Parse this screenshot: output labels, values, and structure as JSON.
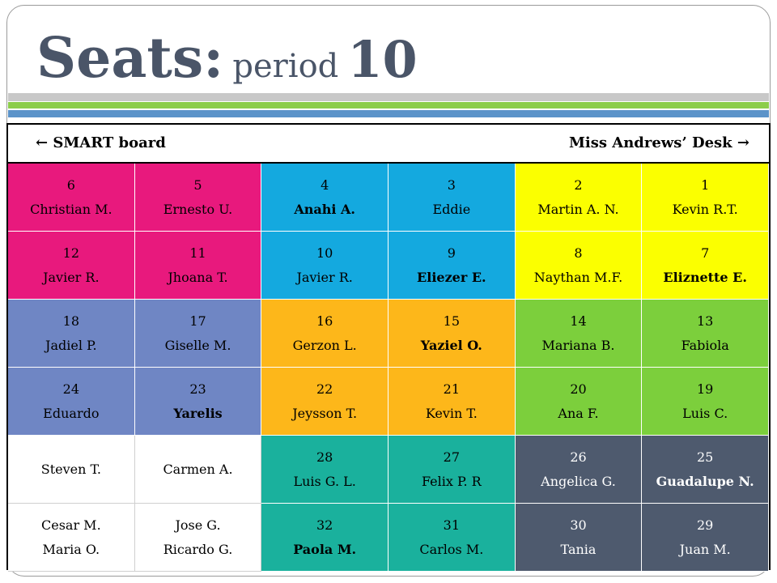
{
  "title": {
    "seats": "Seats:",
    "period": "period",
    "number": "10"
  },
  "header": {
    "left": "← SMART board",
    "right": "Miss Andrews’ Desk →"
  },
  "colors": {
    "pink": "#e8197d",
    "blue": "#14a9df",
    "yellow": "#fbff00",
    "periwinkle": "#6f86c4",
    "orange": "#fdb71a",
    "lime": "#7ccf3c",
    "white": "#ffffff",
    "teal": "#1ab19d",
    "slate": "#4e5a6e"
  },
  "rows": [
    [
      {
        "seat": "6",
        "name": "Christian M.",
        "color": "pink",
        "bold": false
      },
      {
        "seat": "5",
        "name": "Ernesto U.",
        "color": "pink",
        "bold": false
      },
      {
        "seat": "4",
        "name": "Anahi A.",
        "color": "blue",
        "bold": true
      },
      {
        "seat": "3",
        "name": "Eddie",
        "color": "blue",
        "bold": false
      },
      {
        "seat": "2",
        "name": "Martin A. N.",
        "color": "yellow",
        "bold": false
      },
      {
        "seat": "1",
        "name": "Kevin R.T.",
        "color": "yellow",
        "bold": false
      }
    ],
    [
      {
        "seat": "12",
        "name": "Javier R.",
        "color": "pink",
        "bold": false
      },
      {
        "seat": "11",
        "name": "Jhoana T.",
        "color": "pink",
        "bold": false
      },
      {
        "seat": "10",
        "name": "Javier R.",
        "color": "blue",
        "bold": false
      },
      {
        "seat": "9",
        "name": "Eliezer E.",
        "color": "blue",
        "bold": true
      },
      {
        "seat": "8",
        "name": "Naythan M.F.",
        "color": "yellow",
        "bold": false
      },
      {
        "seat": "7",
        "name": "Eliznette E.",
        "color": "yellow",
        "bold": true
      }
    ],
    [
      {
        "seat": "18",
        "name": "Jadiel P.",
        "color": "periwinkle",
        "bold": false
      },
      {
        "seat": "17",
        "name": "Giselle M.",
        "color": "periwinkle",
        "bold": false
      },
      {
        "seat": "16",
        "name": "Gerzon L.",
        "color": "orange",
        "bold": false
      },
      {
        "seat": "15",
        "name": "Yaziel O.",
        "color": "orange",
        "bold": true
      },
      {
        "seat": "14",
        "name": "Mariana B.",
        "color": "lime",
        "bold": false
      },
      {
        "seat": "13",
        "name": "Fabiola",
        "color": "lime",
        "bold": false
      }
    ],
    [
      {
        "seat": "24",
        "name": "Eduardo",
        "color": "periwinkle",
        "bold": false
      },
      {
        "seat": "23",
        "name": "Yarelis",
        "color": "periwinkle",
        "bold": true
      },
      {
        "seat": "22",
        "name": "Jeysson T.",
        "color": "orange",
        "bold": false
      },
      {
        "seat": "21",
        "name": "Kevin T.",
        "color": "orange",
        "bold": false
      },
      {
        "seat": "20",
        "name": "Ana F.",
        "color": "lime",
        "bold": false
      },
      {
        "seat": "19",
        "name": "Luis C.",
        "color": "lime",
        "bold": false
      }
    ],
    [
      {
        "seat": "",
        "name": "Steven T.",
        "color": "white",
        "bold": false
      },
      {
        "seat": "",
        "name": "Carmen A.",
        "color": "white",
        "bold": false
      },
      {
        "seat": "28",
        "name": "Luis G. L.",
        "color": "teal",
        "bold": false
      },
      {
        "seat": "27",
        "name": "Felix P. R",
        "color": "teal",
        "bold": false
      },
      {
        "seat": "26",
        "name": "Angelica G.",
        "color": "slate",
        "bold": false
      },
      {
        "seat": "25",
        "name": "Guadalupe N.",
        "color": "slate",
        "bold": true
      }
    ],
    [
      {
        "seat": "",
        "name": "Cesar M.",
        "name2": "Maria O.",
        "color": "white",
        "bold": false
      },
      {
        "seat": "",
        "name": "Jose G.",
        "name2": "Ricardo G.",
        "color": "white",
        "bold": false
      },
      {
        "seat": "32",
        "name": "Paola M.",
        "color": "teal",
        "bold": true
      },
      {
        "seat": "31",
        "name": "Carlos M.",
        "color": "teal",
        "bold": false
      },
      {
        "seat": "30",
        "name": "Tania",
        "color": "slate",
        "bold": false
      },
      {
        "seat": "29",
        "name": "Juan M.",
        "color": "slate",
        "bold": false
      }
    ]
  ]
}
